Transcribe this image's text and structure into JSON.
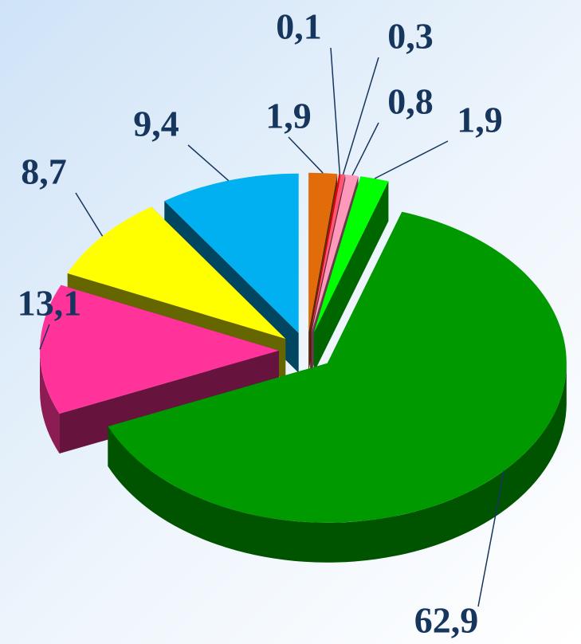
{
  "chart_data": {
    "type": "pie",
    "values": [
      1.9,
      0.1,
      0.3,
      0.8,
      1.9,
      62.9,
      13.1,
      8.7,
      9.4
    ],
    "value_labels": [
      "1,9",
      "0,1",
      "0,3",
      "0,8",
      "1,9",
      "62,9",
      "13,1",
      "8,7",
      "9,4"
    ],
    "colors": [
      "#e36c0a",
      "#ff0000",
      "#ff5577",
      "#ff99bb",
      "#00ff00",
      "#009900",
      "#ff3399",
      "#ffff00",
      "#00b0f0"
    ]
  }
}
